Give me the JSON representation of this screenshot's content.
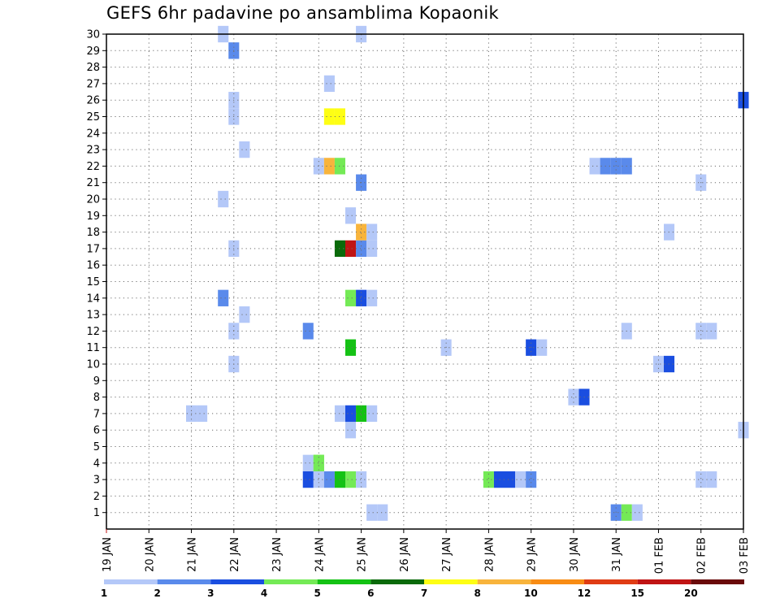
{
  "chart_data": {
    "type": "heatmap",
    "title": "GEFS 6hr padavine po ansamblima Kopaonik",
    "x_tick_labels": [
      "19 JAN",
      "20 JAN",
      "21 JAN",
      "22 JAN",
      "23 JAN",
      "24 JAN",
      "25 JAN",
      "26 JAN",
      "27 JAN",
      "28 JAN",
      "29 JAN",
      "30 JAN",
      "31 JAN",
      "01 FEB",
      "02 FEB",
      "03 FEB"
    ],
    "y_tick_labels": [
      "1",
      "2",
      "3",
      "4",
      "5",
      "6",
      "7",
      "8",
      "9",
      "10",
      "11",
      "12",
      "13",
      "14",
      "15",
      "16",
      "17",
      "18",
      "19",
      "20",
      "21",
      "22",
      "23",
      "24",
      "25",
      "26",
      "27",
      "28",
      "29",
      "30"
    ],
    "xlim_days": [
      0,
      15
    ],
    "ylim": [
      0,
      30
    ],
    "grid": true,
    "legend": {
      "position": "bottom",
      "labels": [
        "1",
        "2",
        "3",
        "4",
        "5",
        "6",
        "7",
        "8",
        "10",
        "12",
        "15",
        "20"
      ],
      "colors": [
        "#b4c8f8",
        "#5a8aeb",
        "#1a4ee0",
        "#74ea56",
        "#14c214",
        "#0a6a0a",
        "#fefe14",
        "#f8b43c",
        "#f88c14",
        "#e03c14",
        "#c01414",
        "#6a0a0a"
      ]
    },
    "cells": [
      {
        "day": 6.25,
        "member": 1,
        "color": "#b4c8f8"
      },
      {
        "day": 6.5,
        "member": 1,
        "color": "#b4c8f8"
      },
      {
        "day": 12.0,
        "member": 1,
        "color": "#5a8aeb"
      },
      {
        "day": 12.25,
        "member": 1,
        "color": "#74ea56"
      },
      {
        "day": 12.5,
        "member": 1,
        "color": "#b4c8f8"
      },
      {
        "day": 4.75,
        "member": 3,
        "color": "#1a4ee0"
      },
      {
        "day": 5.0,
        "member": 3,
        "color": "#b4c8f8"
      },
      {
        "day": 5.25,
        "member": 3,
        "color": "#5a8aeb"
      },
      {
        "day": 5.5,
        "member": 3,
        "color": "#14c214"
      },
      {
        "day": 5.75,
        "member": 3,
        "color": "#74ea56"
      },
      {
        "day": 6.0,
        "member": 3,
        "color": "#b4c8f8"
      },
      {
        "day": 9.0,
        "member": 3,
        "color": "#74ea56"
      },
      {
        "day": 9.25,
        "member": 3,
        "color": "#1a4ee0"
      },
      {
        "day": 9.5,
        "member": 3,
        "color": "#1a4ee0"
      },
      {
        "day": 9.75,
        "member": 3,
        "color": "#b4c8f8"
      },
      {
        "day": 10.0,
        "member": 3,
        "color": "#5a8aeb"
      },
      {
        "day": 14.0,
        "member": 3,
        "color": "#b4c8f8"
      },
      {
        "day": 14.25,
        "member": 3,
        "color": "#b4c8f8"
      },
      {
        "day": 4.75,
        "member": 4,
        "color": "#b4c8f8"
      },
      {
        "day": 5.0,
        "member": 4,
        "color": "#74ea56"
      },
      {
        "day": 5.0,
        "member": 4,
        "color": "#74ea56"
      },
      {
        "day": 5.75,
        "member": 6,
        "color": "#b4c8f8"
      },
      {
        "day": 15.0,
        "member": 6,
        "color": "#b4c8f8"
      },
      {
        "day": 2.0,
        "member": 7,
        "color": "#b4c8f8"
      },
      {
        "day": 2.25,
        "member": 7,
        "color": "#b4c8f8"
      },
      {
        "day": 5.5,
        "member": 7,
        "color": "#b4c8f8"
      },
      {
        "day": 5.75,
        "member": 7,
        "color": "#1a4ee0"
      },
      {
        "day": 6.0,
        "member": 7,
        "color": "#14c214"
      },
      {
        "day": 6.25,
        "member": 7,
        "color": "#b4c8f8"
      },
      {
        "day": 11.0,
        "member": 8,
        "color": "#b4c8f8"
      },
      {
        "day": 11.25,
        "member": 8,
        "color": "#1a4ee0"
      },
      {
        "day": 3.0,
        "member": 10,
        "color": "#b4c8f8"
      },
      {
        "day": 13.0,
        "member": 10,
        "color": "#b4c8f8"
      },
      {
        "day": 13.25,
        "member": 10,
        "color": "#1a4ee0"
      },
      {
        "day": 5.75,
        "member": 11,
        "color": "#14c214"
      },
      {
        "day": 8.0,
        "member": 11,
        "color": "#b4c8f8"
      },
      {
        "day": 10.0,
        "member": 11,
        "color": "#1a4ee0"
      },
      {
        "day": 10.25,
        "member": 11,
        "color": "#b4c8f8"
      },
      {
        "day": 3.0,
        "member": 12,
        "color": "#b4c8f8"
      },
      {
        "day": 4.75,
        "member": 12,
        "color": "#5a8aeb"
      },
      {
        "day": 12.25,
        "member": 12,
        "color": "#b4c8f8"
      },
      {
        "day": 14.0,
        "member": 12,
        "color": "#b4c8f8"
      },
      {
        "day": 14.25,
        "member": 12,
        "color": "#b4c8f8"
      },
      {
        "day": 3.25,
        "member": 13,
        "color": "#b4c8f8"
      },
      {
        "day": 2.75,
        "member": 14,
        "color": "#5a8aeb"
      },
      {
        "day": 5.75,
        "member": 14,
        "color": "#74ea56"
      },
      {
        "day": 6.0,
        "member": 14,
        "color": "#1a4ee0"
      },
      {
        "day": 6.25,
        "member": 14,
        "color": "#b4c8f8"
      },
      {
        "day": 3.0,
        "member": 17,
        "color": "#b4c8f8"
      },
      {
        "day": 5.5,
        "member": 17,
        "color": "#0a6a0a"
      },
      {
        "day": 5.75,
        "member": 17,
        "color": "#c01414"
      },
      {
        "day": 6.0,
        "member": 17,
        "color": "#5a8aeb"
      },
      {
        "day": 6.25,
        "member": 17,
        "color": "#b4c8f8"
      },
      {
        "day": 6.0,
        "member": 18,
        "color": "#f8b43c"
      },
      {
        "day": 6.25,
        "member": 18,
        "color": "#b4c8f8"
      },
      {
        "day": 13.25,
        "member": 18,
        "color": "#b4c8f8"
      },
      {
        "day": 5.75,
        "member": 19,
        "color": "#b4c8f8"
      },
      {
        "day": 2.75,
        "member": 20,
        "color": "#b4c8f8"
      },
      {
        "day": 6.0,
        "member": 21,
        "color": "#5a8aeb"
      },
      {
        "day": 14.0,
        "member": 21,
        "color": "#b4c8f8"
      },
      {
        "day": 5.0,
        "member": 22,
        "color": "#b4c8f8"
      },
      {
        "day": 5.25,
        "member": 22,
        "color": "#f8b43c"
      },
      {
        "day": 5.5,
        "member": 22,
        "color": "#74ea56"
      },
      {
        "day": 11.5,
        "member": 22,
        "color": "#b4c8f8"
      },
      {
        "day": 11.75,
        "member": 22,
        "color": "#5a8aeb"
      },
      {
        "day": 12.0,
        "member": 22,
        "color": "#5a8aeb"
      },
      {
        "day": 12.25,
        "member": 22,
        "color": "#5a8aeb"
      },
      {
        "day": 3.25,
        "member": 23,
        "color": "#b4c8f8"
      },
      {
        "day": 3.0,
        "member": 25,
        "color": "#b4c8f8"
      },
      {
        "day": 5.25,
        "member": 25,
        "color": "#fefe14"
      },
      {
        "day": 5.5,
        "member": 25,
        "color": "#fefe14"
      },
      {
        "day": 3.0,
        "member": 26,
        "color": "#b4c8f8"
      },
      {
        "day": 15.0,
        "member": 26,
        "color": "#1a4ee0"
      },
      {
        "day": 5.25,
        "member": 27,
        "color": "#b4c8f8"
      },
      {
        "day": 3.0,
        "member": 29,
        "color": "#5a8aeb"
      },
      {
        "day": 2.75,
        "member": 30,
        "color": "#b4c8f8"
      },
      {
        "day": 6.0,
        "member": 30,
        "color": "#b4c8f8"
      }
    ]
  }
}
